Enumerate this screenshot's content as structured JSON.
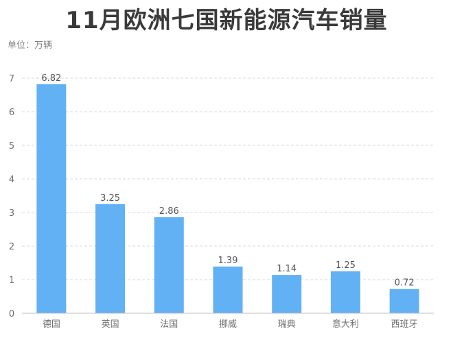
{
  "title": "11月欧洲七国新能源汽车销量",
  "unit": "单位：万辆",
  "chart_data": {
    "type": "bar",
    "title": "11月欧洲七国新能源汽车销量",
    "ylabel": "单位：万辆",
    "xlabel": "",
    "categories": [
      "德国",
      "英国",
      "法国",
      "挪威",
      "瑞典",
      "意大利",
      "西班牙"
    ],
    "values": [
      6.82,
      3.25,
      2.86,
      1.39,
      1.14,
      1.25,
      0.72
    ],
    "ylim": [
      0,
      7
    ],
    "yticks": [
      0,
      1,
      2,
      3,
      4,
      5,
      6,
      7
    ],
    "grid": true,
    "bar_color": "#62b1f5"
  }
}
